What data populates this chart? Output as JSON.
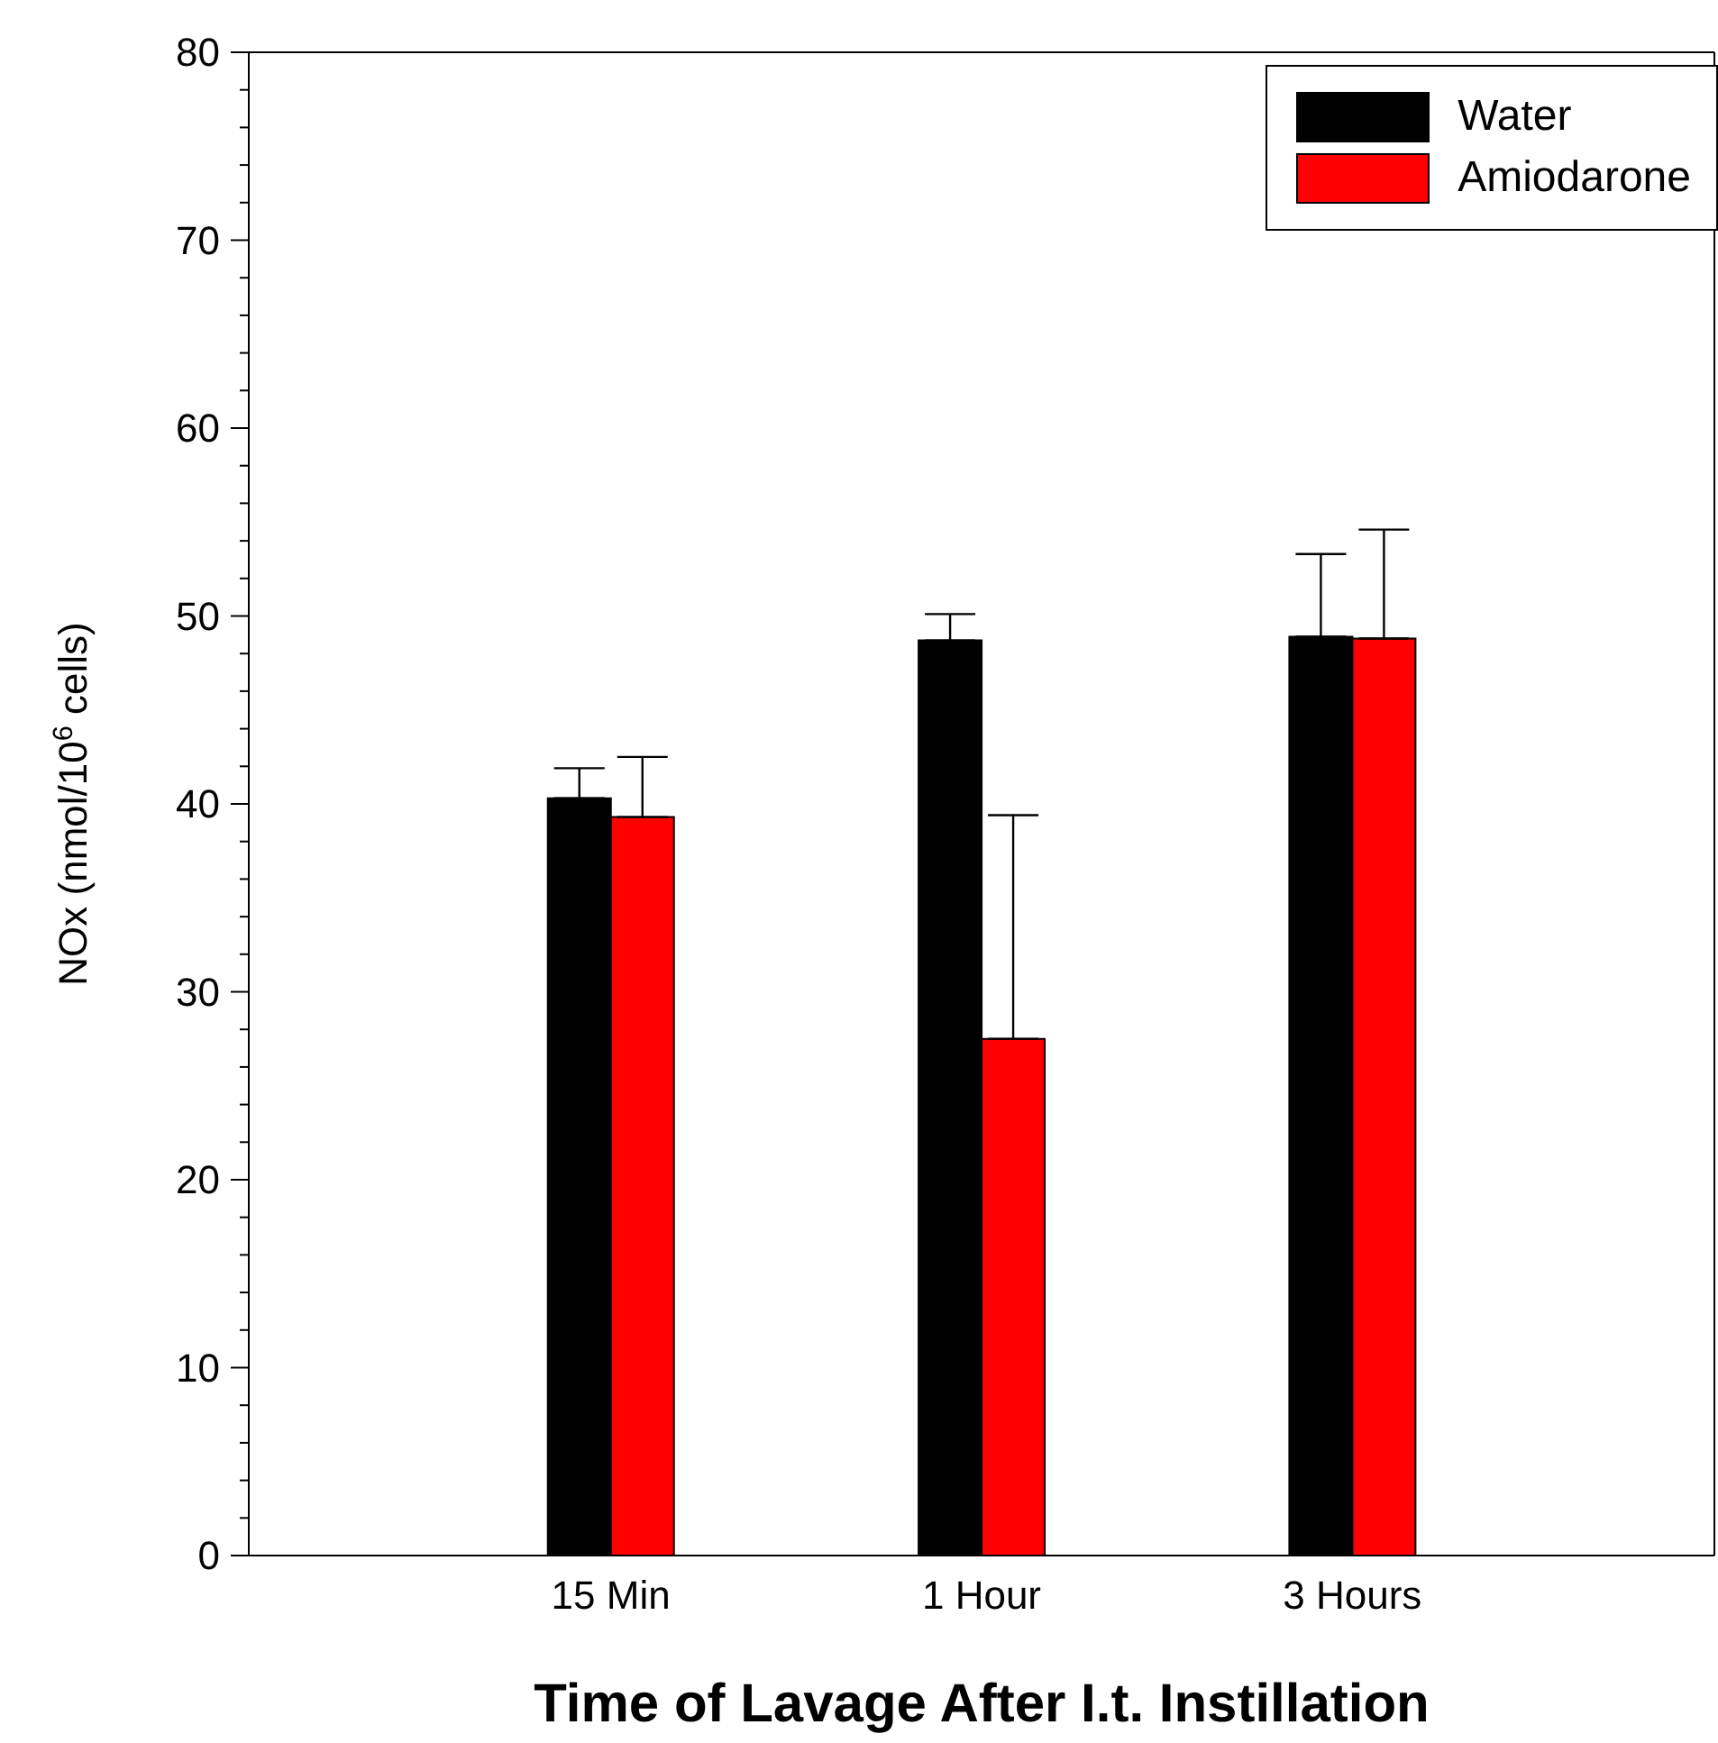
{
  "chart_data": {
    "type": "bar",
    "xlabel": "Time of Lavage After I.t. Instillation",
    "ylabel": "NOx (nmol/10$^{6}$ cells)",
    "categories": [
      "15 Min",
      "1 Hour",
      "3 Hours"
    ],
    "series": [
      {
        "name": "Water",
        "color": "#000000",
        "values": [
          40.3,
          48.7,
          48.9
        ],
        "errors": [
          [
            40.3,
            41.9
          ],
          [
            48.7,
            50.1
          ],
          [
            48.9,
            53.3
          ]
        ]
      },
      {
        "name": "Amiodarone",
        "color": "#ff0000",
        "values": [
          39.3,
          27.5,
          48.8
        ],
        "errors": [
          [
            39.3,
            42.5
          ],
          [
            27.5,
            39.4
          ],
          [
            48.8,
            54.6
          ]
        ]
      }
    ],
    "ylim": [
      0,
      80
    ],
    "yticks": [
      0,
      {
        "value": 2,
        "label": null
      },
      {
        "value": 4,
        "label": null
      },
      {
        "value": 6,
        "label": null
      },
      {
        "value": 8,
        "label": null
      },
      10,
      {
        "value": 12,
        "label": null
      },
      {
        "value": 14,
        "label": null
      },
      {
        "value": 16,
        "label": null
      },
      {
        "value": 18,
        "label": null
      },
      20,
      {
        "value": 22,
        "label": null
      },
      {
        "value": 24,
        "label": null
      },
      {
        "value": 26,
        "label": null
      },
      {
        "value": 28,
        "label": null
      },
      30,
      {
        "value": 32,
        "label": null
      },
      {
        "value": 34,
        "label": null
      },
      {
        "value": 36,
        "label": null
      },
      {
        "value": 38,
        "label": null
      },
      40,
      {
        "value": 42,
        "label": null
      },
      {
        "value": 44,
        "label": null
      },
      {
        "value": 46,
        "label": null
      },
      {
        "value": 48,
        "label": null
      },
      50,
      {
        "value": 52,
        "label": null
      },
      {
        "value": 54,
        "label": null
      },
      {
        "value": 56,
        "label": null
      },
      {
        "value": 58,
        "label": null
      },
      60,
      {
        "value": 62,
        "label": null
      },
      {
        "value": 64,
        "label": null
      },
      {
        "value": 66,
        "label": null
      },
      {
        "value": 68,
        "label": null
      },
      70,
      {
        "value": 72,
        "label": null
      },
      {
        "value": 74,
        "label": null
      },
      {
        "value": 76,
        "label": null
      },
      {
        "value": 78,
        "label": null
      },
      80
    ],
    "grid": false,
    "legend": "top right"
  }
}
